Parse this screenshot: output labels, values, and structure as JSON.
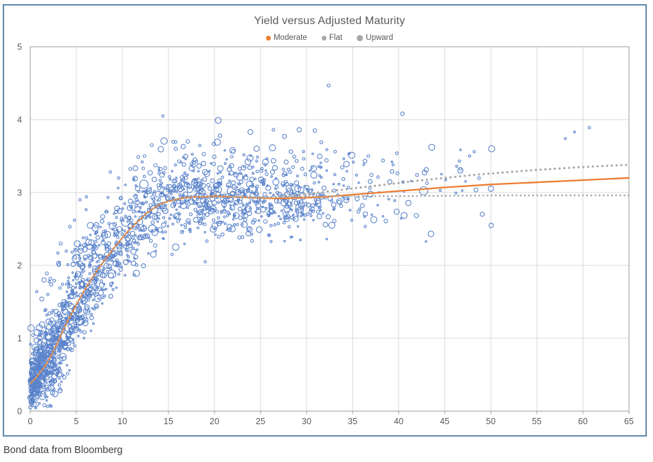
{
  "caption": "Bond data from Bloomberg",
  "chart_data": {
    "type": "scatter",
    "title": "Yield versus Adjusted Maturity",
    "xlabel": "",
    "ylabel": "",
    "x_axis": {
      "min": 0,
      "max": 65,
      "step": 5,
      "tick_labels": [
        "0",
        "5",
        "10",
        "15",
        "20",
        "25",
        "30",
        "35",
        "40",
        "45",
        "50",
        "55",
        "60",
        "65"
      ]
    },
    "y_axis": {
      "min": 0,
      "max": 5,
      "step": 1,
      "tick_labels": [
        "0",
        "1",
        "2",
        "3",
        "4",
        "5"
      ]
    },
    "legend": {
      "position": "top-center",
      "items": [
        {
          "label": "Moderate",
          "color": "#ED7D31",
          "dot": 7
        },
        {
          "label": "Flat",
          "color": "#A6A6A6",
          "dot": 7
        },
        {
          "label": "Upward",
          "color": "#A6A6A6",
          "dot": 9
        }
      ]
    },
    "colors": {
      "scatter": "#4472C4",
      "moderate_line": "#ED7D31",
      "flat_line": "#A9A9A9",
      "upward_line": "#A6A6A6",
      "grid": "#D9D9D9",
      "plot_border": "#9B9B9B",
      "tick_label": "#595959",
      "title": "#595959",
      "frame_border": "#5E87AA"
    },
    "grid": true,
    "series": [
      {
        "name": "Moderate",
        "style": "solid",
        "width": 2.3,
        "color": "#ED7D31",
        "points": [
          [
            0,
            0.38
          ],
          [
            0.5,
            0.44
          ],
          [
            1,
            0.52
          ],
          [
            1.5,
            0.6
          ],
          [
            2,
            0.7
          ],
          [
            2.5,
            0.82
          ],
          [
            3,
            0.95
          ],
          [
            3.5,
            1.09
          ],
          [
            4,
            1.22
          ],
          [
            4.5,
            1.34
          ],
          [
            5,
            1.46
          ],
          [
            5.5,
            1.57
          ],
          [
            6,
            1.68
          ],
          [
            6.5,
            1.78
          ],
          [
            7,
            1.88
          ],
          [
            7.5,
            1.97
          ],
          [
            8,
            2.06
          ],
          [
            8.5,
            2.14
          ],
          [
            9,
            2.22
          ],
          [
            9.5,
            2.3
          ],
          [
            10,
            2.38
          ],
          [
            10.5,
            2.45
          ],
          [
            11,
            2.52
          ],
          [
            11.5,
            2.58
          ],
          [
            12,
            2.64
          ],
          [
            12.5,
            2.7
          ],
          [
            13,
            2.75
          ],
          [
            13.5,
            2.79
          ],
          [
            14,
            2.83
          ],
          [
            14.5,
            2.86
          ],
          [
            15,
            2.88
          ],
          [
            16,
            2.91
          ],
          [
            17,
            2.93
          ],
          [
            18,
            2.94
          ],
          [
            19,
            2.94
          ],
          [
            20,
            2.95
          ],
          [
            22,
            2.94
          ],
          [
            24,
            2.93
          ],
          [
            26,
            2.92
          ],
          [
            28,
            2.92
          ],
          [
            30,
            2.93
          ],
          [
            32,
            2.94
          ],
          [
            34,
            2.96
          ],
          [
            36,
            2.98
          ],
          [
            38,
            3.0
          ],
          [
            40,
            3.02
          ],
          [
            45,
            3.07
          ],
          [
            50,
            3.11
          ],
          [
            55,
            3.14
          ],
          [
            60,
            3.17
          ],
          [
            65,
            3.2
          ]
        ]
      },
      {
        "name": "Flat",
        "style": "dotted",
        "width": 2.7,
        "color": "#A9A9A9",
        "points": [
          [
            0,
            0.38
          ],
          [
            0.5,
            0.44
          ],
          [
            1,
            0.52
          ],
          [
            1.5,
            0.6
          ],
          [
            2,
            0.7
          ],
          [
            2.5,
            0.82
          ],
          [
            3,
            0.95
          ],
          [
            3.5,
            1.09
          ],
          [
            4,
            1.22
          ],
          [
            4.5,
            1.34
          ],
          [
            5,
            1.46
          ],
          [
            5.5,
            1.57
          ],
          [
            6,
            1.68
          ],
          [
            6.5,
            1.78
          ],
          [
            7,
            1.88
          ],
          [
            7.5,
            1.97
          ],
          [
            8,
            2.06
          ],
          [
            8.5,
            2.14
          ],
          [
            9,
            2.22
          ],
          [
            9.5,
            2.3
          ],
          [
            10,
            2.38
          ],
          [
            10.5,
            2.45
          ],
          [
            11,
            2.52
          ],
          [
            11.5,
            2.58
          ],
          [
            12,
            2.64
          ],
          [
            12.5,
            2.7
          ],
          [
            13,
            2.75
          ],
          [
            13.5,
            2.79
          ],
          [
            14,
            2.83
          ],
          [
            14.5,
            2.86
          ],
          [
            15,
            2.88
          ],
          [
            16,
            2.91
          ],
          [
            17,
            2.93
          ],
          [
            18,
            2.94
          ],
          [
            19,
            2.94
          ],
          [
            20,
            2.95
          ],
          [
            24,
            2.94
          ],
          [
            28,
            2.94
          ],
          [
            32,
            2.95
          ],
          [
            40,
            2.95
          ],
          [
            50,
            2.96
          ],
          [
            65,
            2.96
          ]
        ]
      },
      {
        "name": "Upward",
        "style": "dotted",
        "width": 3.1,
        "color": "#A6A6A6",
        "points": [
          [
            22,
            2.94
          ],
          [
            24,
            2.93
          ],
          [
            26,
            2.93
          ],
          [
            28,
            2.95
          ],
          [
            30,
            2.98
          ],
          [
            32,
            3.01
          ],
          [
            34,
            3.04
          ],
          [
            36,
            3.07
          ],
          [
            38,
            3.1
          ],
          [
            40,
            3.13
          ],
          [
            42,
            3.16
          ],
          [
            45,
            3.2
          ],
          [
            48,
            3.24
          ],
          [
            50,
            3.26
          ],
          [
            55,
            3.31
          ],
          [
            60,
            3.35
          ],
          [
            65,
            3.38
          ]
        ]
      }
    ],
    "scatter": {
      "color": "#4472C4",
      "stroke_width": 1.1,
      "opacity": 0.88,
      "seed": 20240613,
      "bands": [
        [
          0,
          0.5,
          95,
          0.16,
          3,
          0.8
        ],
        [
          0.5,
          1,
          85,
          0.2,
          3,
          0.9
        ],
        [
          1,
          1.5,
          70,
          0.24,
          4,
          1.0
        ],
        [
          1.5,
          2,
          65,
          0.26,
          4,
          1.1
        ],
        [
          2,
          3,
          100,
          0.3,
          6,
          1.3
        ],
        [
          3,
          4,
          90,
          0.32,
          5,
          1.2
        ],
        [
          4,
          5,
          80,
          0.33,
          4,
          1.15
        ],
        [
          5,
          6.5,
          90,
          0.32,
          5,
          1.1
        ],
        [
          6.5,
          8,
          80,
          0.31,
          4,
          1.0
        ],
        [
          8,
          10,
          90,
          0.3,
          5,
          0.95
        ],
        [
          10,
          12,
          80,
          0.28,
          4,
          0.95
        ],
        [
          12,
          14,
          75,
          0.27,
          5,
          1.0
        ],
        [
          14,
          16,
          70,
          0.26,
          5,
          0.85
        ],
        [
          16,
          18,
          75,
          0.26,
          5,
          0.8
        ],
        [
          18,
          20,
          80,
          0.26,
          5,
          0.75
        ],
        [
          20,
          22,
          75,
          0.25,
          4,
          0.75
        ],
        [
          22,
          24,
          70,
          0.25,
          4,
          0.7
        ],
        [
          24,
          26,
          65,
          0.24,
          3,
          0.7
        ],
        [
          26,
          28,
          60,
          0.24,
          3,
          0.7
        ],
        [
          28,
          30,
          60,
          0.24,
          3,
          0.7
        ],
        [
          30,
          32,
          45,
          0.26,
          2,
          0.6
        ],
        [
          32,
          34,
          24,
          0.26,
          1,
          0.5
        ],
        [
          34,
          36,
          16,
          0.25,
          1,
          0.5
        ],
        [
          36,
          38,
          14,
          0.24,
          1,
          0.45
        ],
        [
          38,
          40,
          11,
          0.24,
          0,
          0
        ],
        [
          40,
          42,
          8,
          0.24,
          0,
          0
        ],
        [
          42,
          45,
          8,
          0.28,
          0,
          0
        ],
        [
          45,
          48,
          7,
          0.28,
          0,
          0
        ],
        [
          48,
          50.5,
          5,
          0.28,
          0,
          0
        ]
      ],
      "outliers": [
        [
          32.4,
          4.47,
          2.2
        ],
        [
          40.4,
          4.08,
          2.7
        ],
        [
          14.4,
          4.05,
          1.8
        ],
        [
          20.4,
          3.99,
          4.3
        ],
        [
          23.9,
          3.83,
          3.6
        ],
        [
          20.6,
          3.78,
          2.6
        ],
        [
          17.1,
          3.7,
          2.6
        ],
        [
          26.4,
          3.86,
          2.0
        ],
        [
          27.6,
          3.77,
          3.0
        ],
        [
          29.2,
          3.86,
          3.2
        ],
        [
          30.9,
          3.85,
          2.6
        ],
        [
          31.6,
          3.69,
          2.2
        ],
        [
          33.1,
          3.56,
          2.0
        ],
        [
          34.9,
          3.51,
          4.6
        ],
        [
          36.7,
          3.5,
          2.0
        ],
        [
          38.3,
          3.44,
          2.2
        ],
        [
          43.6,
          3.62,
          4.4
        ],
        [
          46.3,
          3.36,
          1.6
        ],
        [
          46.6,
          3.43,
          1.7
        ],
        [
          47.7,
          3.5,
          1.7
        ],
        [
          48.2,
          3.56,
          1.7
        ],
        [
          50.1,
          3.6,
          4.6
        ],
        [
          58.1,
          3.74,
          1.4
        ],
        [
          59.1,
          3.83,
          1.4
        ],
        [
          60.7,
          3.89,
          1.8
        ],
        [
          1.8,
          1.89,
          2.2
        ],
        [
          1.5,
          1.8,
          3.2
        ],
        [
          2.6,
          1.79,
          2.0
        ],
        [
          0.7,
          1.64,
          1.6
        ],
        [
          3.3,
          2.3,
          2.2
        ],
        [
          4.3,
          2.53,
          2.0
        ],
        [
          5.4,
          2.9,
          1.8
        ],
        [
          4.8,
          2.62,
          1.6
        ],
        [
          6.1,
          2.94,
          1.7
        ],
        [
          8.7,
          3.28,
          1.9
        ],
        [
          9.6,
          3.2,
          1.8
        ],
        [
          12.4,
          3.5,
          2.0
        ],
        [
          13.2,
          3.65,
          2.2
        ],
        [
          15.8,
          3.6,
          2.4
        ],
        [
          22.5,
          2.56,
          1.7
        ],
        [
          23.0,
          2.56,
          1.7
        ],
        [
          19.0,
          2.05,
          1.7
        ],
        [
          11.3,
          1.87,
          1.8
        ],
        [
          15.4,
          2.15,
          1.8
        ],
        [
          36.3,
          2.67,
          1.6
        ],
        [
          34.9,
          2.62,
          1.6
        ]
      ]
    }
  }
}
